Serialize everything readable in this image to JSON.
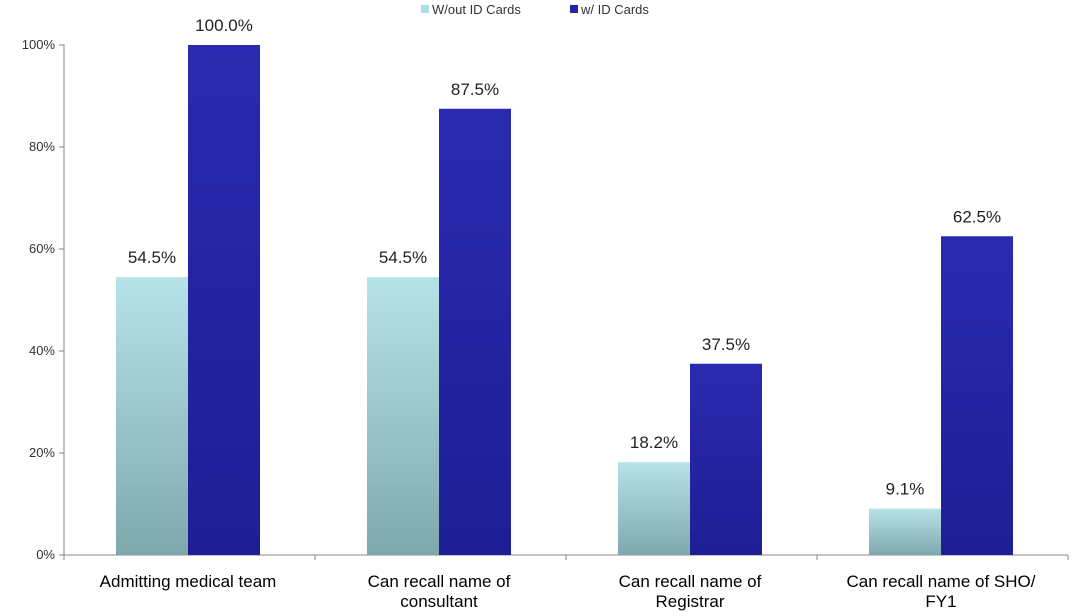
{
  "chart_data": {
    "type": "bar",
    "categories": [
      [
        "Admitting medical team"
      ],
      [
        "Can recall name of",
        "consultant"
      ],
      [
        "Can recall  name of",
        "Registrar"
      ],
      [
        "Can recall name of SHO/",
        "FY1"
      ]
    ],
    "series": [
      {
        "name": "W/out ID Cards",
        "values": [
          54.5,
          54.5,
          18.2,
          9.1
        ],
        "labels": [
          "54.5%",
          "54.5%",
          "18.2%",
          "9.1%"
        ],
        "color_top": "#b6e3e8",
        "color_bottom": "#7fa8ad"
      },
      {
        "name": "w/ ID Cards",
        "values": [
          100.0,
          87.5,
          37.5,
          62.5
        ],
        "labels": [
          "100.0%",
          "87.5%",
          "37.5%",
          "62.5%"
        ],
        "color_top": "#2a2ab0",
        "color_bottom": "#1e1e95"
      }
    ],
    "ylim": [
      0,
      100
    ],
    "yticks": [
      "0%",
      "20%",
      "40%",
      "60%",
      "80%",
      "100%"
    ],
    "ytick_values": [
      0,
      20,
      40,
      60,
      80,
      100
    ],
    "legend_position": "top-center",
    "grid": false
  }
}
